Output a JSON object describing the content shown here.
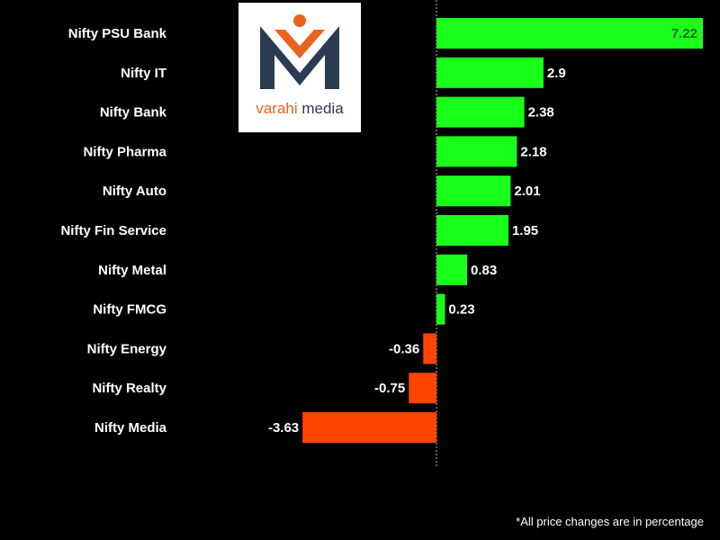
{
  "logo": {
    "text_prefix": "varahi",
    "text_suffix": " media",
    "colors": {
      "navy": "#2a3b52",
      "orange": "#e8641e"
    }
  },
  "footnote": "*All price changes are in percentage",
  "chart_data": {
    "type": "bar",
    "orientation": "horizontal",
    "categories": [
      "Nifty PSU Bank",
      "Nifty IT",
      "Nifty Bank",
      "Nifty Pharma",
      "Nifty Auto",
      "Nifty Fin Service",
      "Nifty Metal",
      "Nifty FMCG",
      "Nifty Energy",
      "Nifty Realty",
      "Nifty Media"
    ],
    "values": [
      7.22,
      2.9,
      2.38,
      2.18,
      2.01,
      1.95,
      0.83,
      0.23,
      -0.36,
      -0.75,
      -3.63
    ],
    "value_labels": [
      "7.22",
      "2.9",
      "2.38",
      "2.18",
      "2.01",
      "1.95",
      "0.83",
      "0.23",
      "-0.36",
      "-0.75",
      "-3.63"
    ],
    "xlim": [
      -3.63,
      7.22
    ],
    "colors": {
      "positive": "#1aff1a",
      "negative": "#ff4500",
      "background": "#000000",
      "zero_line": "#bbbbbb"
    },
    "grid": false,
    "legend": "none"
  }
}
